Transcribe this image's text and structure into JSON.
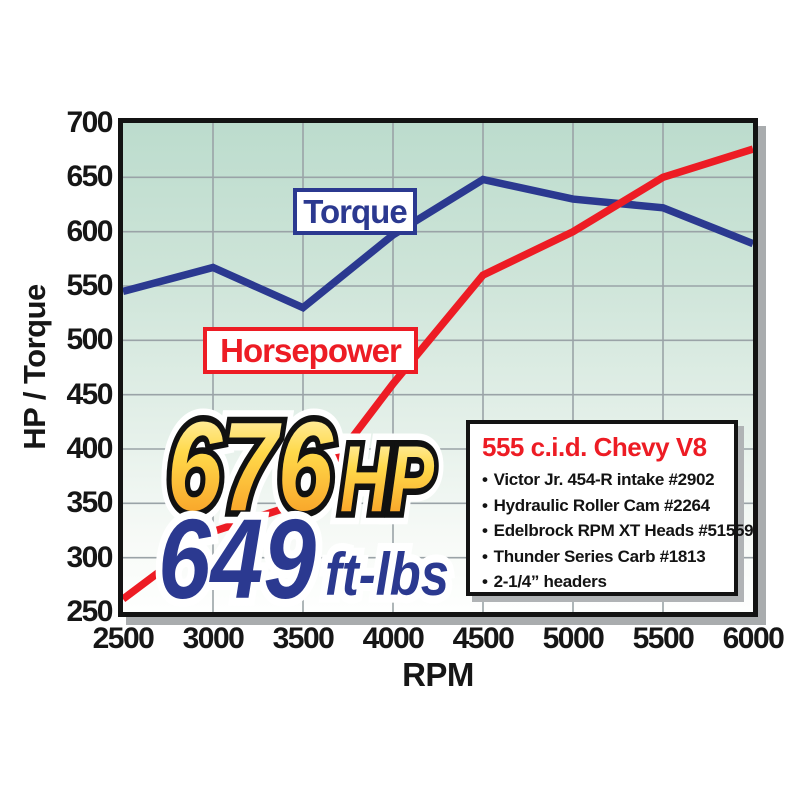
{
  "chart_data": {
    "type": "line",
    "xlabel": "RPM",
    "ylabel": "HP / Torque",
    "xlim": [
      2500,
      6000
    ],
    "ylim": [
      250,
      700
    ],
    "xticks": [
      2500,
      3000,
      3500,
      4000,
      4500,
      5000,
      5500,
      6000
    ],
    "yticks": [
      700,
      650,
      600,
      550,
      500,
      450,
      400,
      350,
      300,
      250
    ],
    "grid": true,
    "legend_position": "inline-labels",
    "x": [
      2500,
      3000,
      3500,
      4000,
      4500,
      5000,
      5500,
      6000
    ],
    "series": [
      {
        "name": "Torque",
        "color": "#2b3990",
        "values": [
          545,
          567,
          530,
          597,
          648,
          630,
          622,
          589
        ]
      },
      {
        "name": "Horsepower",
        "color": "#ed1c24",
        "values": [
          262,
          324,
          351,
          460,
          560,
          600,
          650,
          676
        ]
      }
    ]
  },
  "hero": {
    "hp_value": "676",
    "hp_unit": "HP",
    "tq_value": "649",
    "tq_unit": "ft-lbs"
  },
  "spec_box": {
    "title": "555 c.i.d. Chevy V8",
    "bullet": "•",
    "items": [
      "Victor Jr. 454-R intake #2902",
      "Hydraulic Roller Cam #2264",
      "Edelbrock RPM XT Heads #51559",
      "Thunder Series Carb #1813",
      "2-1/4” headers"
    ]
  },
  "colors": {
    "torque_line": "#2b3990",
    "horsepower_line": "#ed1c24",
    "spec_title": "#ed1c24",
    "grid": "#9aa3a7",
    "frame": "#131313",
    "plot_bg_top": "#bcdccd",
    "plot_bg_bottom": "#fefffe",
    "gold_top": "#fff8cf",
    "gold_mid": "#ffd94a",
    "gold_bottom": "#f6921e"
  }
}
